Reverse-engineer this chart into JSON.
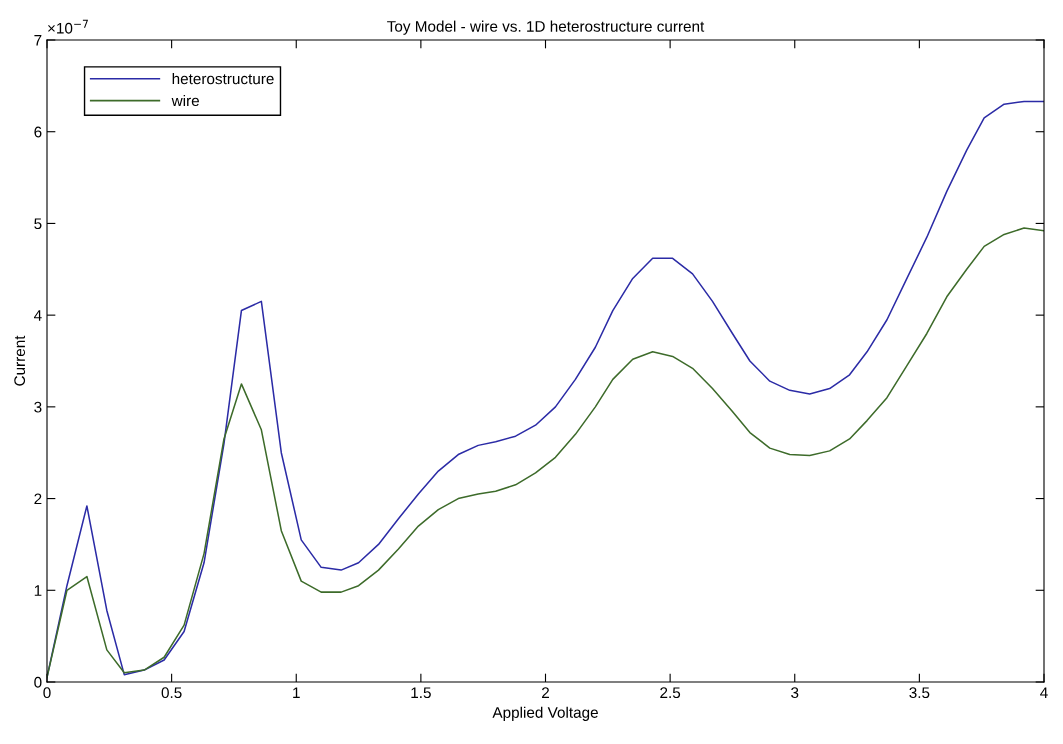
{
  "chart_data": {
    "type": "line",
    "title": "Toy Model - wire vs. 1D heterostructure current",
    "xlabel": "Applied Voltage",
    "ylabel": "Current",
    "annotations": [
      "×10$^{−7}$"
    ],
    "x": [
      0,
      0.08,
      0.16,
      0.24,
      0.31,
      0.39,
      0.47,
      0.55,
      0.63,
      0.71,
      0.78,
      0.86,
      0.94,
      1.02,
      1.1,
      1.18,
      1.25,
      1.33,
      1.41,
      1.49,
      1.57,
      1.65,
      1.73,
      1.8,
      1.88,
      1.96,
      2.04,
      2.12,
      2.2,
      2.27,
      2.35,
      2.43,
      2.51,
      2.59,
      2.67,
      2.75,
      2.82,
      2.9,
      2.98,
      3.06,
      3.14,
      3.22,
      3.29,
      3.37,
      3.45,
      3.53,
      3.61,
      3.69,
      3.76,
      3.84,
      3.92,
      4.0
    ],
    "series": [
      {
        "name": "heterostructure",
        "color": "#2b2ba6",
        "values": [
          0.05,
          1.05,
          1.92,
          0.78,
          0.08,
          0.13,
          0.24,
          0.55,
          1.3,
          2.6,
          4.05,
          4.15,
          2.5,
          1.55,
          1.25,
          1.22,
          1.3,
          1.5,
          1.78,
          2.05,
          2.3,
          2.48,
          2.58,
          2.62,
          2.68,
          2.8,
          3.0,
          3.3,
          3.65,
          4.05,
          4.4,
          4.62,
          4.62,
          4.45,
          4.15,
          3.8,
          3.5,
          3.28,
          3.18,
          3.14,
          3.2,
          3.35,
          3.6,
          3.95,
          4.4,
          4.85,
          5.35,
          5.8,
          6.15,
          6.3,
          6.33,
          6.33
        ]
      },
      {
        "name": "wire",
        "color": "#3d6b2a",
        "values": [
          0.05,
          1.0,
          1.15,
          0.35,
          0.1,
          0.13,
          0.27,
          0.62,
          1.4,
          2.65,
          3.25,
          2.75,
          1.65,
          1.1,
          0.98,
          0.98,
          1.05,
          1.22,
          1.45,
          1.7,
          1.88,
          2.0,
          2.05,
          2.08,
          2.15,
          2.28,
          2.45,
          2.7,
          3.0,
          3.3,
          3.52,
          3.6,
          3.55,
          3.42,
          3.2,
          2.95,
          2.72,
          2.55,
          2.48,
          2.47,
          2.52,
          2.65,
          2.85,
          3.1,
          3.45,
          3.8,
          4.2,
          4.5,
          4.75,
          4.88,
          4.95,
          4.92
        ]
      }
    ],
    "xlim": [
      0,
      4
    ],
    "xticks": [
      0,
      0.5,
      1,
      1.5,
      2,
      2.5,
      3,
      3.5,
      4
    ],
    "ylim": [
      0,
      7
    ],
    "yticks": [
      0,
      1,
      2,
      3,
      4,
      5,
      6,
      7
    ],
    "grid": false,
    "legend": "top left",
    "marker": "none",
    "line_style": "solid"
  }
}
